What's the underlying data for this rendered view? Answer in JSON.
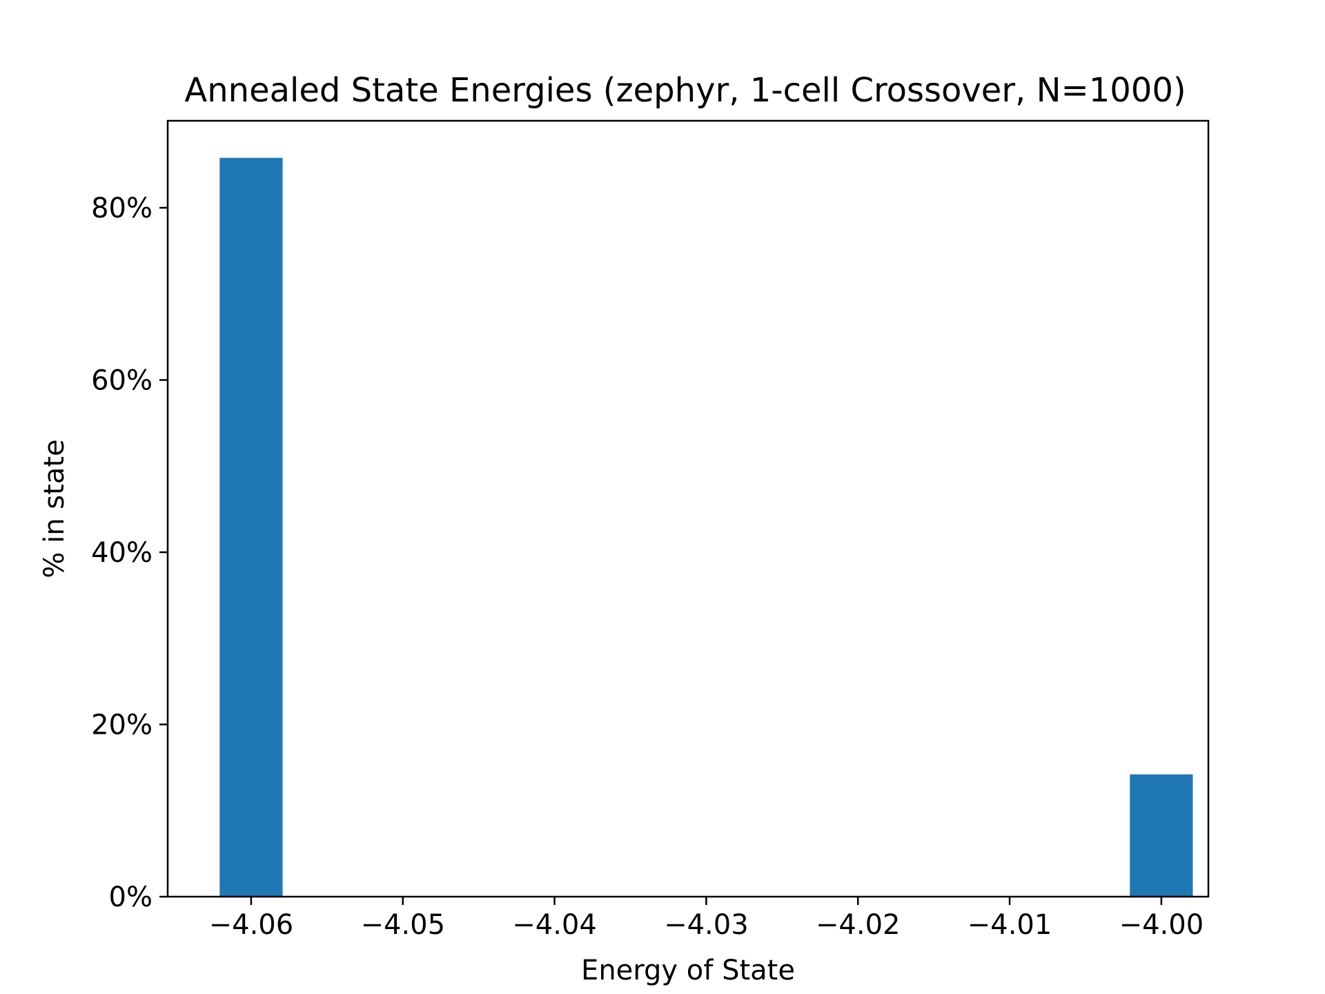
{
  "chart_data": {
    "type": "bar",
    "title": "Annealed State Energies (zephyr, 1-cell Crossover, N=1000)",
    "xlabel": "Energy of State",
    "ylabel": "% in state",
    "bar_color": "#1f77b4",
    "bars": [
      {
        "x": -4.06,
        "value": 85.8
      },
      {
        "x": -4.0,
        "value": 14.2
      }
    ],
    "bin_width": 0.00415,
    "xlim": [
      -4.0655,
      -3.9969
    ],
    "ylim": [
      0,
      90.1
    ],
    "xticks": [
      -4.06,
      -4.05,
      -4.04,
      -4.03,
      -4.02,
      -4.01,
      -4.0
    ],
    "xtick_labels": [
      "−4.06",
      "−4.05",
      "−4.04",
      "−4.03",
      "−4.02",
      "−4.01",
      "−4.00"
    ],
    "yticks": [
      0,
      20,
      40,
      60,
      80
    ],
    "ytick_labels": [
      "0%",
      "20%",
      "40%",
      "60%",
      "80%"
    ],
    "grid": false,
    "legend": false
  }
}
